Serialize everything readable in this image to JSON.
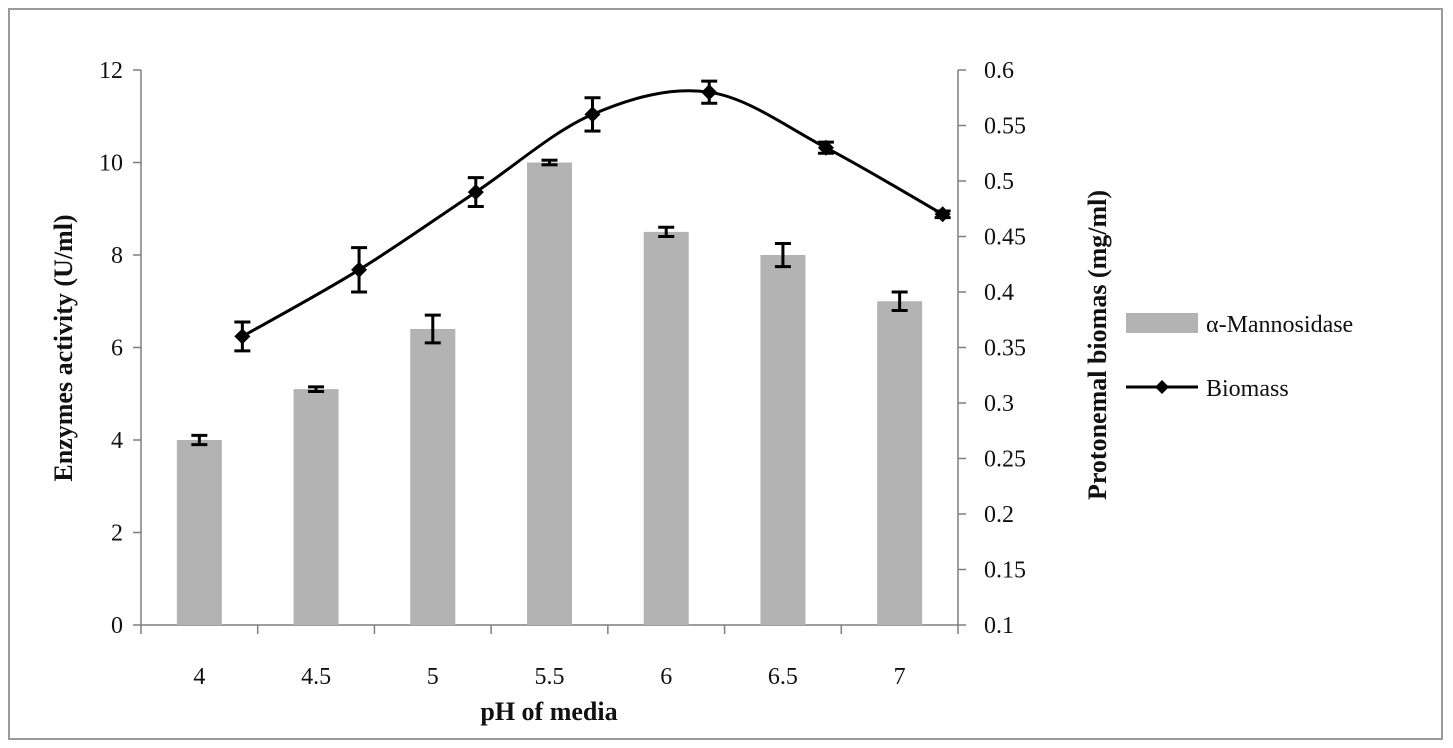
{
  "chart_data": {
    "type": "bar+line",
    "categories": [
      "4",
      "4.5",
      "5",
      "5.5",
      "6",
      "6.5",
      "7"
    ],
    "xlabel": "pH of media",
    "ylabel_left": "Enzymes activity (U/ml)",
    "ylabel_right": "Protonemal biomas (mg/ml)",
    "ylim_left": [
      0,
      12
    ],
    "yticks_left": [
      "0",
      "2",
      "4",
      "6",
      "8",
      "10",
      "12"
    ],
    "ylim_right": [
      0.1,
      0.6
    ],
    "yticks_right": [
      "0.1",
      "0.15",
      "0.2",
      "0.25",
      "0.3",
      "0.35",
      "0.4",
      "0.45",
      "0.5",
      "0.55",
      "0.6"
    ],
    "grid": false,
    "legend_position": "right",
    "series": [
      {
        "name": "α-Mannosidase",
        "kind": "bar",
        "axis": "left",
        "color": "#b3b3b3",
        "values": [
          4.0,
          5.1,
          6.4,
          10.0,
          8.5,
          8.0,
          7.0
        ],
        "errors": [
          0.1,
          0.05,
          0.3,
          0.05,
          0.1,
          0.25,
          0.2
        ]
      },
      {
        "name": "Biomass",
        "kind": "line",
        "axis": "right",
        "color": "#000000",
        "values": [
          0.36,
          0.42,
          0.49,
          0.56,
          0.58,
          0.53,
          0.47
        ],
        "errors": [
          0.013,
          0.02,
          0.013,
          0.015,
          0.01,
          0.005,
          0.003
        ]
      }
    ]
  }
}
